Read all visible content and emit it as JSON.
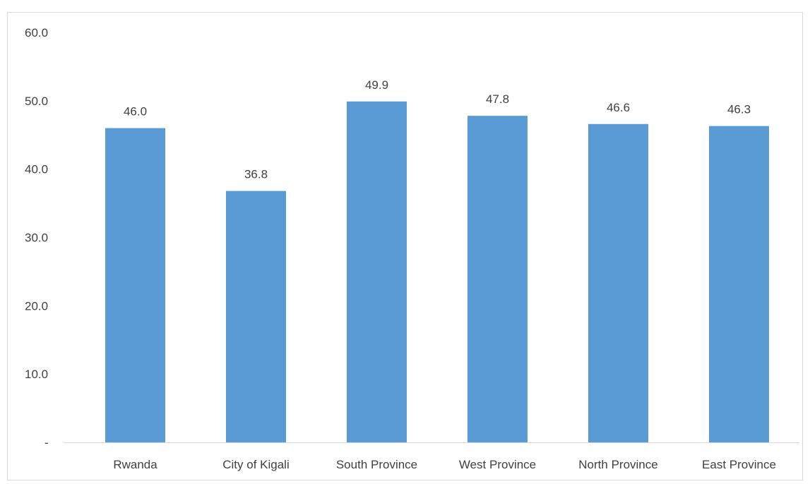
{
  "chart_data": {
    "type": "bar",
    "categories": [
      "Rwanda",
      "City of Kigali",
      "South Province",
      "West Province",
      "North Province",
      "East Province"
    ],
    "values": [
      46.0,
      36.8,
      49.9,
      47.8,
      46.6,
      46.3
    ],
    "data_labels": [
      "46.0",
      "36.8",
      "49.9",
      "47.8",
      "46.6",
      "46.3"
    ],
    "title": "",
    "xlabel": "",
    "ylabel": "",
    "ylim": [
      0,
      60
    ],
    "yticks": [
      0,
      10,
      20,
      30,
      40,
      50,
      60
    ],
    "ytick_labels": [
      "-",
      "10.0",
      "20.0",
      "30.0",
      "40.0",
      "50.0",
      "60.0"
    ],
    "grid": false,
    "legend": "none",
    "bar_color": "#5B9BD5",
    "axis_color": "#D9D9D9",
    "text_color": "#404040"
  }
}
